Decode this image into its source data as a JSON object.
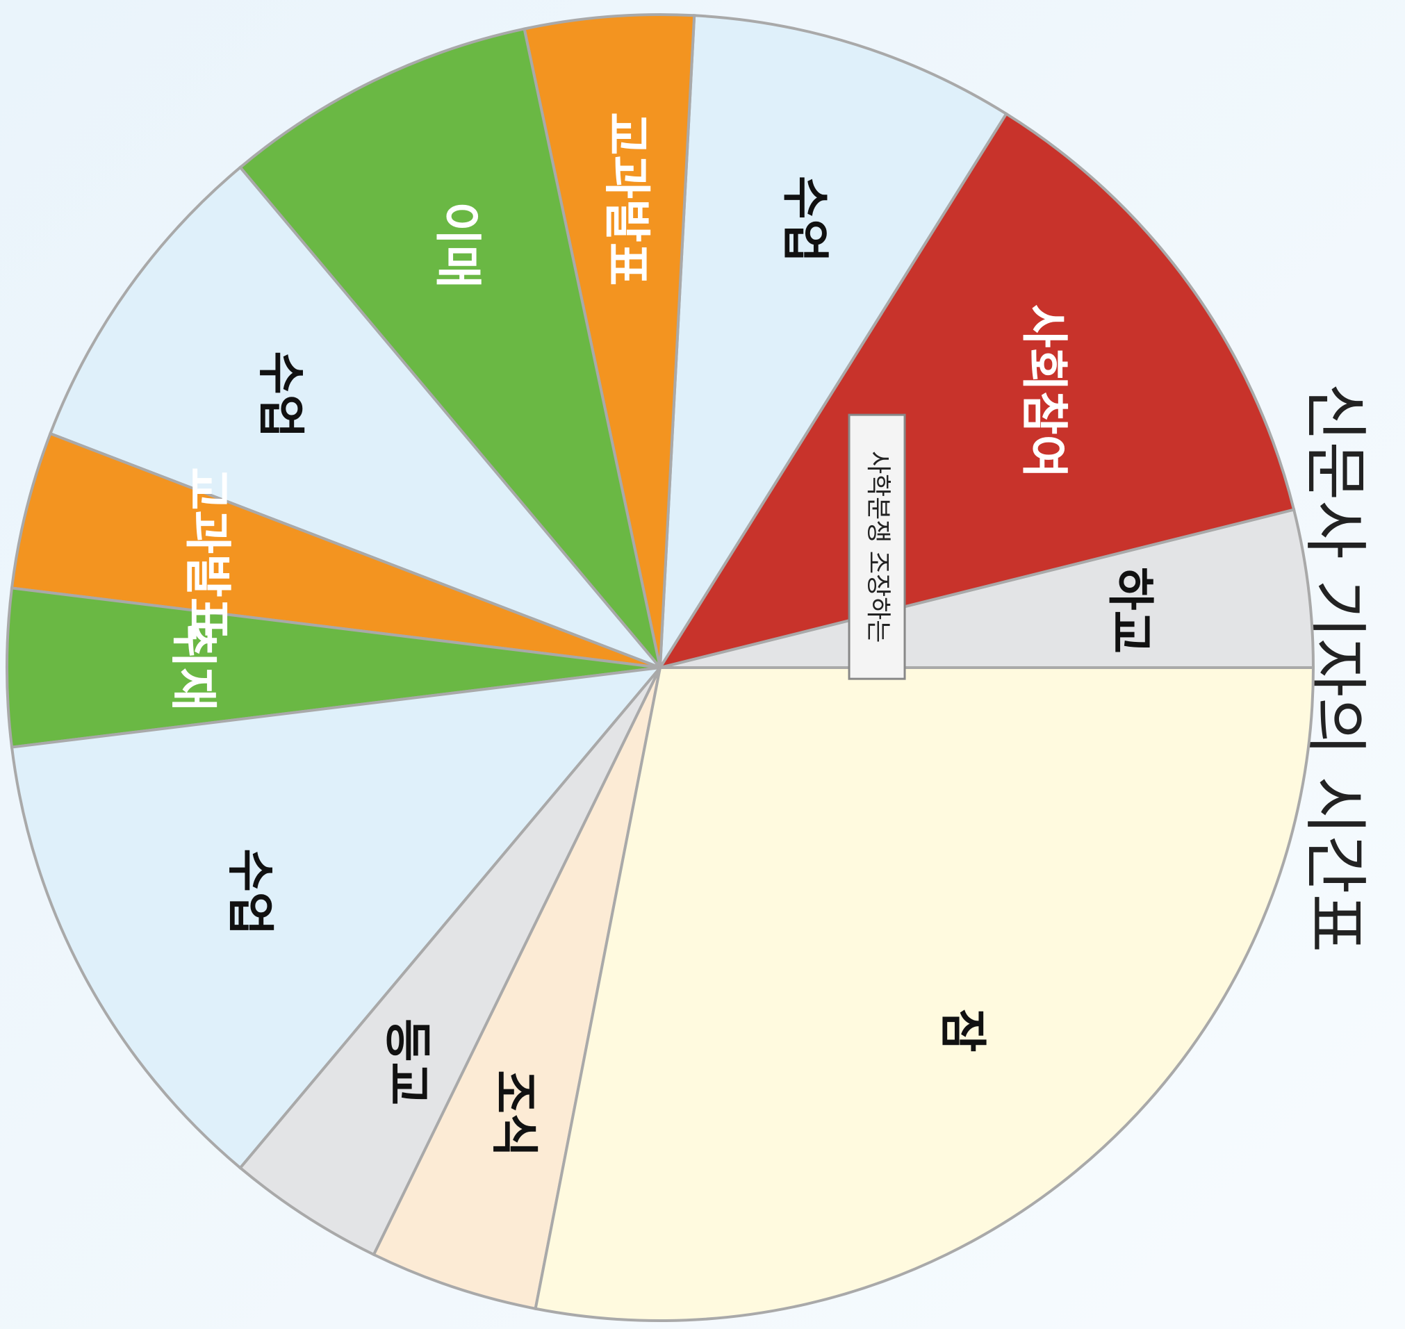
{
  "chart_data": {
    "type": "pie",
    "title": "신문사 기자의 시간표",
    "annotation": "사학분쟁 조장하는",
    "categories": [
      "하교",
      "사회참여",
      "수업",
      "교과발표",
      "이매",
      "수업",
      "교과발표",
      "취재",
      "수업",
      "등교",
      "조식",
      "잠"
    ],
    "values": [
      14,
      44,
      29,
      15,
      28,
      29,
      14,
      14,
      43,
      14,
      15,
      101
    ],
    "colors": [
      "#e3e4e6",
      "#c8332b",
      "#dff0fa",
      "#f39420",
      "#6ab844",
      "#dff0fa",
      "#f39420",
      "#6ab844",
      "#dff0fa",
      "#e3e4e6",
      "#fcebd5",
      "#fffadf"
    ]
  }
}
